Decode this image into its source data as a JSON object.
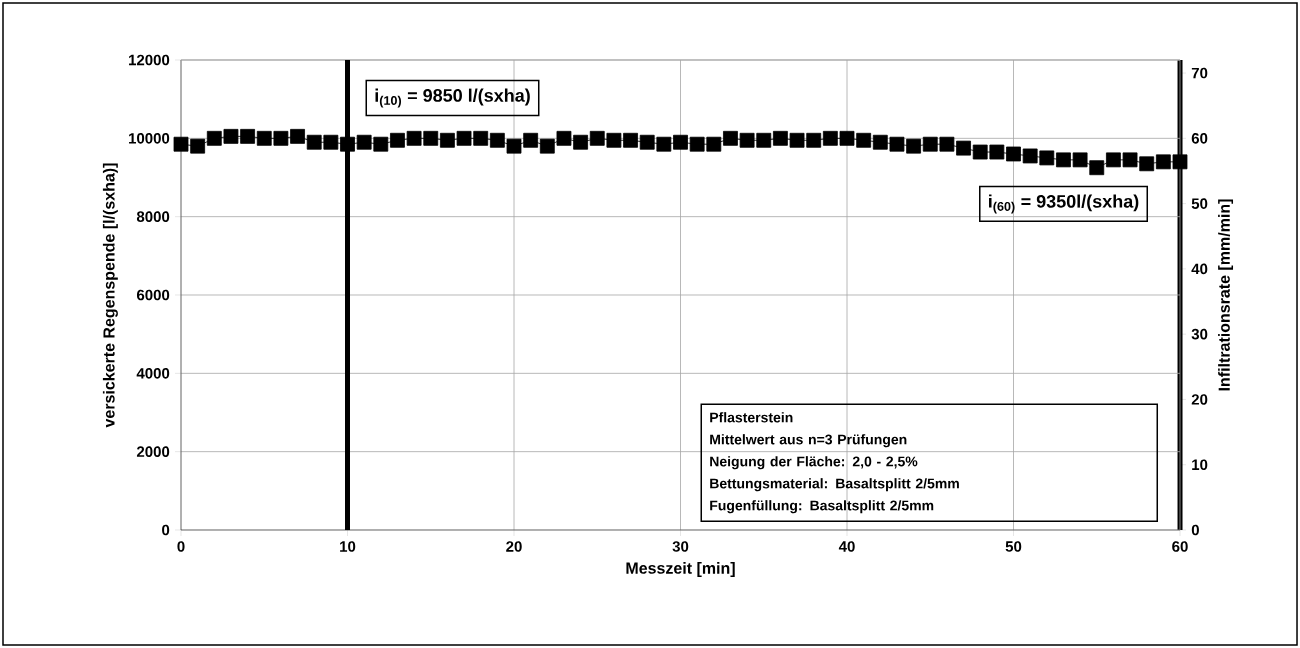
{
  "chart_data": {
    "type": "line",
    "xlabel": "Messzeit [min]",
    "ylabel": "versickerte Regenspende [l/(sxha)]",
    "y2label": "Infiltrationsrate [mm/min]",
    "x": [
      0,
      1,
      2,
      3,
      4,
      5,
      6,
      7,
      8,
      9,
      10,
      11,
      12,
      13,
      14,
      15,
      16,
      17,
      18,
      19,
      20,
      21,
      22,
      23,
      24,
      25,
      26,
      27,
      28,
      29,
      30,
      31,
      32,
      33,
      34,
      35,
      36,
      37,
      38,
      39,
      40,
      41,
      42,
      43,
      44,
      45,
      46,
      47,
      48,
      49,
      50,
      51,
      52,
      53,
      54,
      55,
      56,
      57,
      58,
      59,
      60
    ],
    "series": [
      {
        "color": "#000000",
        "values": [
          9850,
          9800,
          10000,
          10050,
          10050,
          10000,
          10000,
          10050,
          9900,
          9900,
          9850,
          9900,
          9850,
          9950,
          10000,
          10000,
          9950,
          10000,
          10000,
          9950,
          9800,
          9950,
          9800,
          10000,
          9900,
          10000,
          9950,
          9950,
          9900,
          9850,
          9900,
          9850,
          9850,
          10000,
          9950,
          9950,
          10000,
          9950,
          9950,
          10000,
          10000,
          9950,
          9900,
          9850,
          9800,
          9850,
          9850,
          9750,
          9650,
          9650,
          9600,
          9550,
          9500,
          9450,
          9450,
          9250,
          9450,
          9450,
          9350,
          9400,
          9400
        ]
      }
    ],
    "marker": "square",
    "line_style": "solid",
    "grid": true,
    "xlim": [
      0,
      60
    ],
    "xticks": [
      0,
      10,
      20,
      30,
      40,
      50,
      60
    ],
    "ylim": [
      0,
      12000
    ],
    "yticks": [
      0,
      2000,
      4000,
      6000,
      8000,
      10000,
      12000
    ],
    "y2lim": [
      0,
      72
    ],
    "y2ticks": [
      0,
      10,
      20,
      30,
      40,
      50,
      60,
      70
    ],
    "ref_lines": [
      {
        "axis": "x",
        "value": 10,
        "color": "#000000"
      }
    ],
    "annotations": [
      {
        "text": "i$_{(10)}$ = 9850 l/(sxha)",
        "x": 10,
        "y": 9850
      },
      {
        "text": "i$_{(60)}$ = 9350l/(sxha)",
        "x": 60,
        "y": 9350
      },
      "Pflasterstein",
      "Mittelwert aus n=3 Prüfungen",
      "Neigung der Fläche: 2,0 - 2,5%",
      "Bettungsmaterial: Basaltsplitt 2/5mm",
      "Fugenfüllung: Basaltsplitt 2/5mm"
    ]
  }
}
